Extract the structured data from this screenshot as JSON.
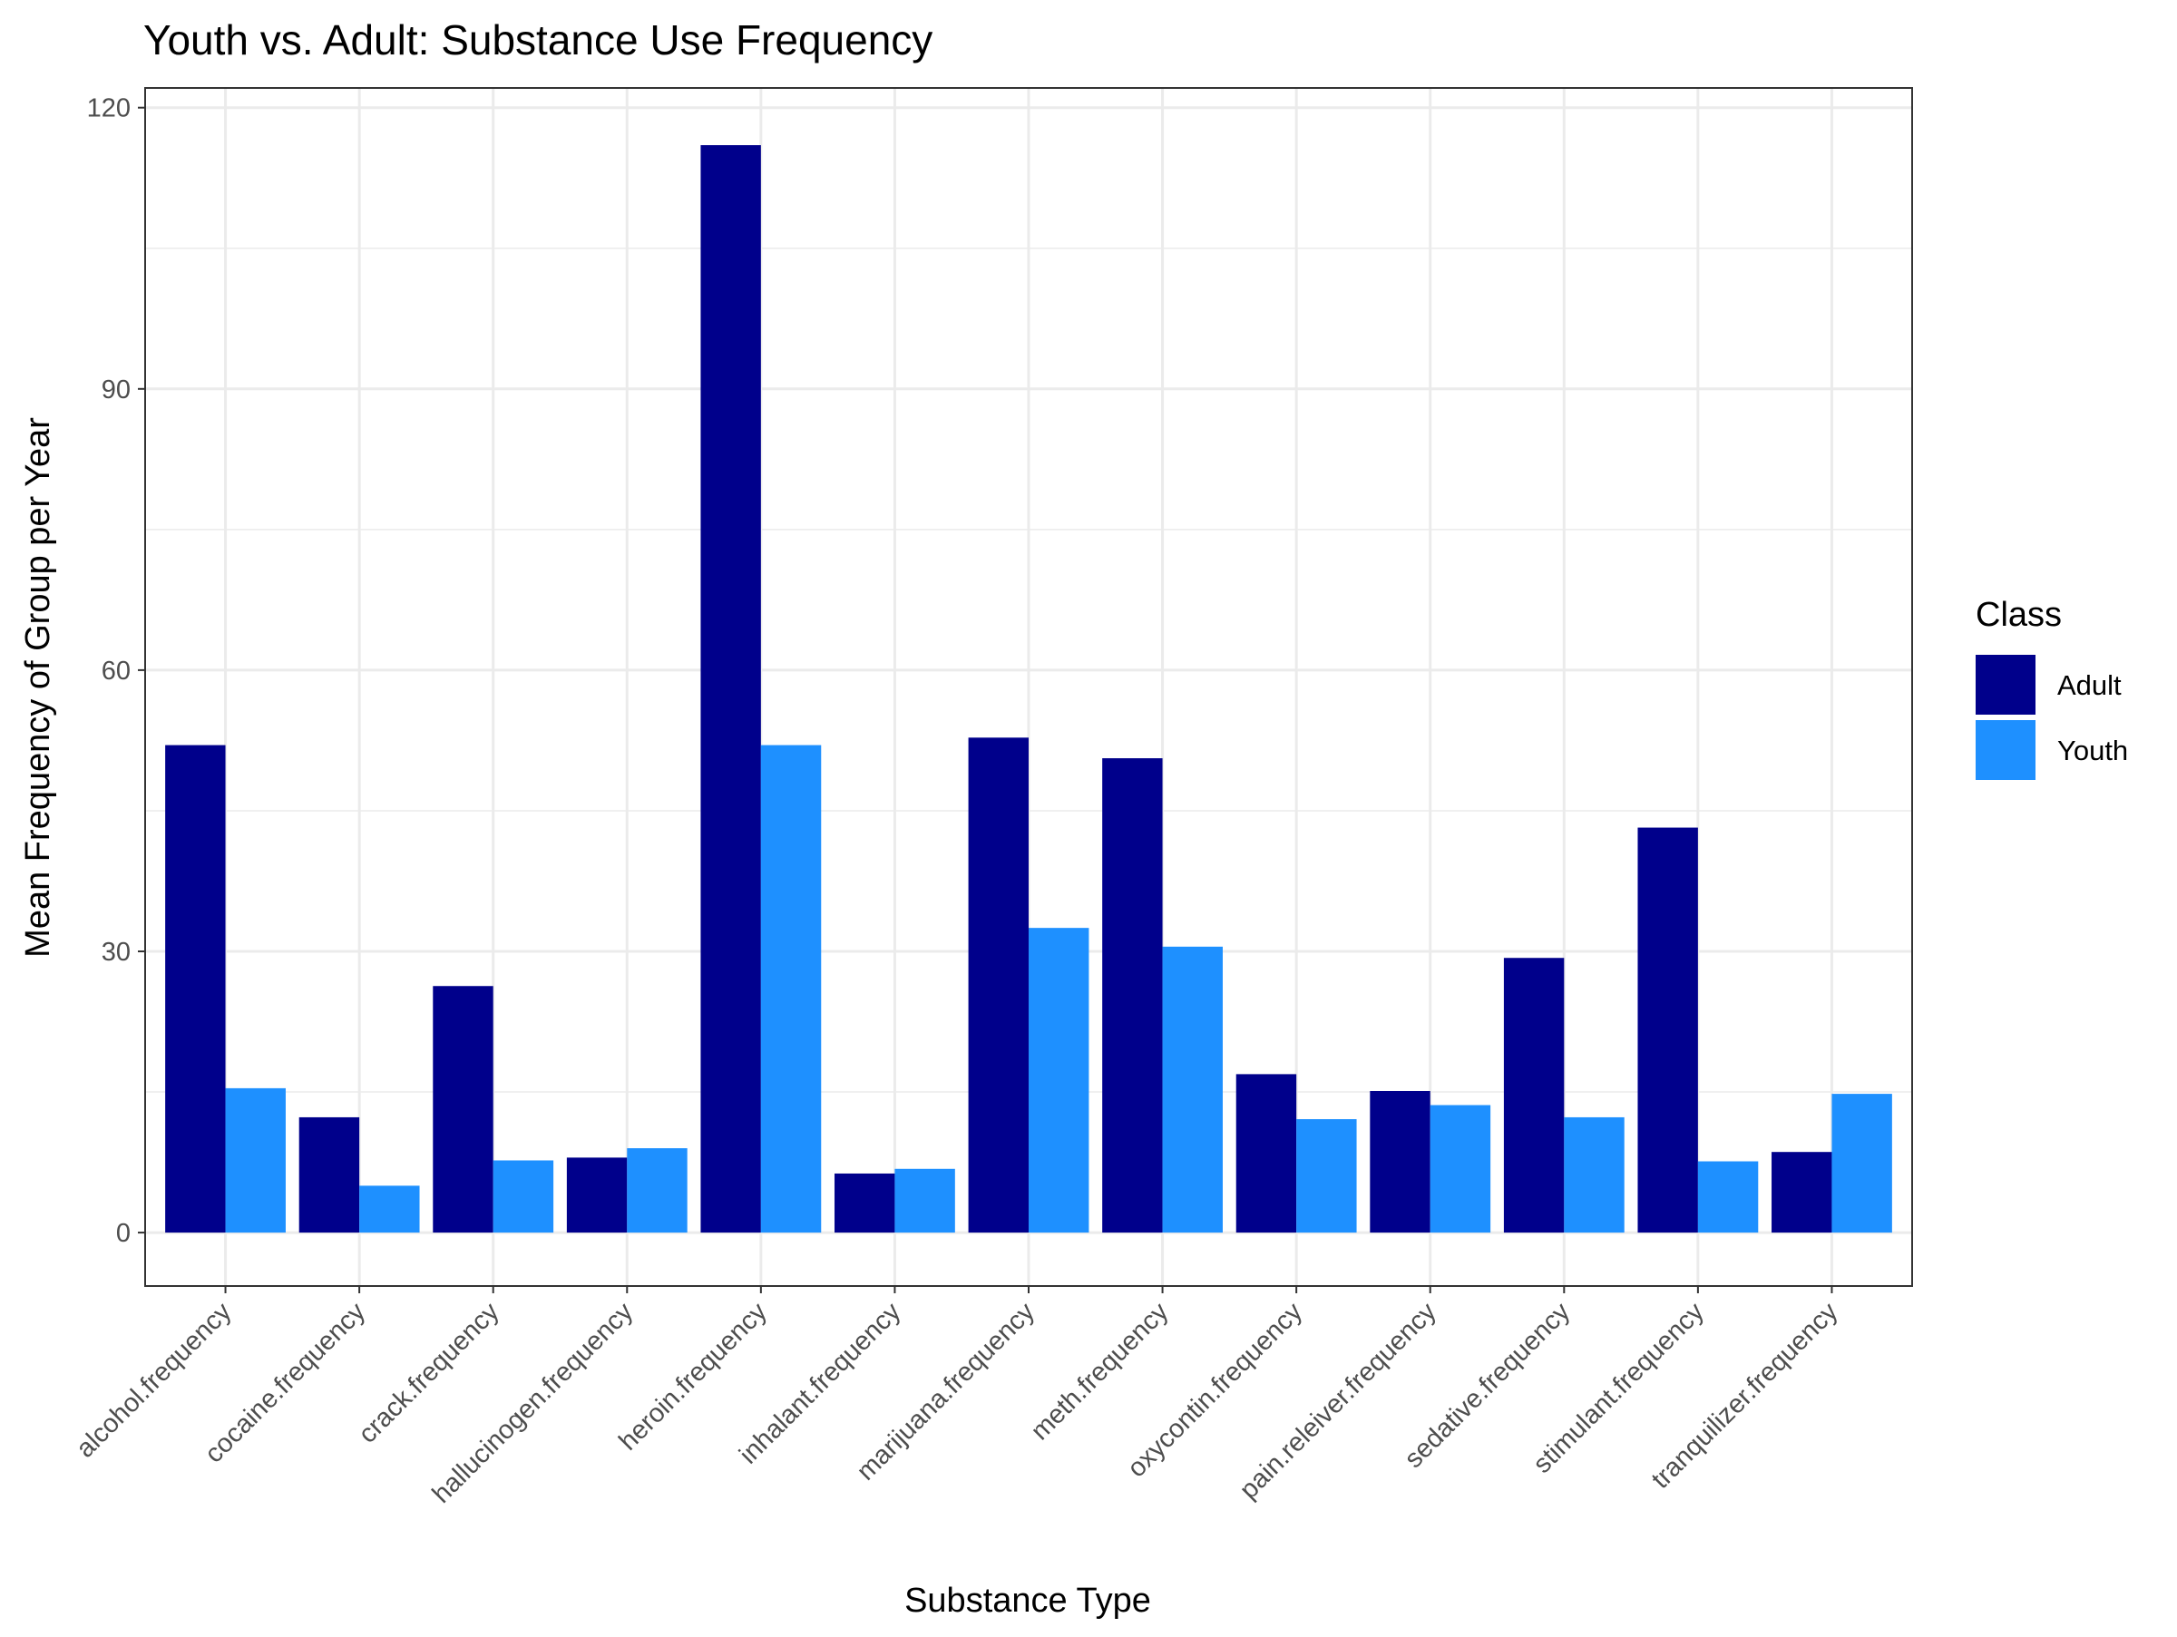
{
  "chart_data": {
    "type": "bar",
    "title": "Youth vs. Adult: Substance Use Frequency",
    "xlabel": "Substance Type",
    "ylabel": "Mean Frequency of Group per Year",
    "ylim": [
      -5.7,
      122.1
    ],
    "y_ticks": [
      0,
      30,
      60,
      90,
      120
    ],
    "y_minor_ticks": [
      15,
      45,
      75,
      105
    ],
    "grid": true,
    "legend_position": "right",
    "legend_title": "Class",
    "categories": [
      "alcohol.frequency",
      "cocaine.frequency",
      "crack.frequency",
      "hallucinogen.frequency",
      "heroin.frequency",
      "inhalant.frequency",
      "marijuana.frequency",
      "meth.frequency",
      "oxycontin.frequency",
      "pain.releiver.frequency",
      "sedative.frequency",
      "stimulant.frequency",
      "tranquilizer.frequency"
    ],
    "series": [
      {
        "name": "Adult",
        "color": "#00008B",
        "values": [
          52,
          12.3,
          26.3,
          8,
          116,
          6.3,
          52.8,
          50.6,
          16.9,
          15.1,
          29.3,
          43.2,
          8.6
        ]
      },
      {
        "name": "Youth",
        "color": "#1E90FF",
        "values": [
          15.4,
          5,
          7.7,
          9,
          52,
          6.8,
          32.5,
          30.5,
          12.1,
          13.6,
          12.3,
          7.6,
          14.8
        ]
      }
    ]
  }
}
